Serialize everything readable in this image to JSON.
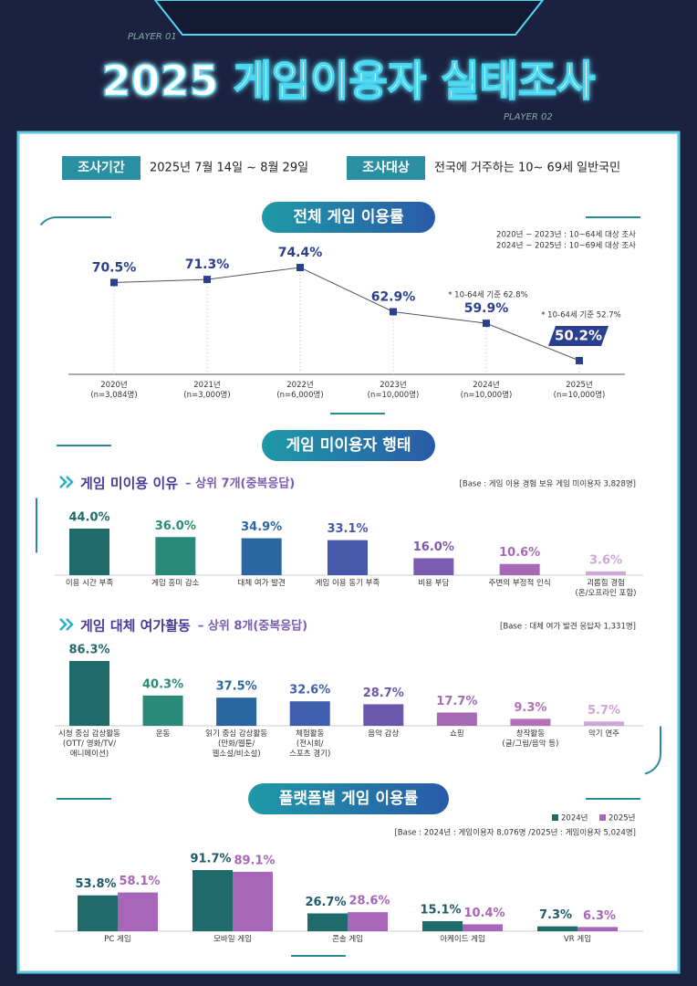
{
  "header": {
    "title": "2025 게임이용자 실태조사",
    "player_1": "PLAYER 01",
    "player_2": "PLAYER 02"
  },
  "survey": {
    "period_label": "조사기간",
    "period": "2025년 7월 14일 ~ 8월 29일",
    "target_label": "조사대상",
    "target": "전국에 거주하는 10~ 69세 일반국민"
  },
  "chart_data": [
    {
      "type": "line",
      "title": "전체 게임 이용률",
      "notes": [
        "2020년 ~ 2023년 : 10~64세 대상 조사",
        "2024년 ~ 2025년 : 10~69세 대상 조사"
      ],
      "categories": [
        "2020년\n(n=3,084명)",
        "2021년\n(n=3,000명)",
        "2022년\n(n=6,000명)",
        "2023년\n(n=10,000명)",
        "2024년\n(n=10,000명)",
        "2025년\n(n=10,000명)"
      ],
      "values": [
        70.5,
        71.3,
        74.4,
        62.9,
        59.9,
        50.2
      ],
      "value_labels": [
        "70.5%",
        "71.3%",
        "74.4%",
        "62.9%",
        "59.9%",
        "50.2%"
      ],
      "annotations": [
        "* 10-64세 기준 62.8%",
        "* 10-64세 기준 52.7%"
      ],
      "color": "#2b3f8f",
      "highlight_last": true
    },
    {
      "type": "bar",
      "section_title": "게임 미이용자 행태",
      "title": "게임 미이용 이유",
      "subtitle": "– 상위 7개(중복응답)",
      "base_note": "[Base : 게임 이용 경험 보유 게임 미이용자 3,828명]",
      "categories": [
        "이용 시간 부족",
        "게임 흥미 감소",
        "대체 여가 발견",
        "게임 이용 동기 부족",
        "비용 부담",
        "주변의 부정적 인식",
        "괴롭힘 경험\n(온/오프라인 포함)"
      ],
      "values": [
        44.0,
        36.0,
        34.9,
        33.1,
        16.0,
        10.6,
        3.6
      ],
      "value_labels": [
        "44.0%",
        "36.0%",
        "34.9%",
        "33.1%",
        "16.0%",
        "10.6%",
        "3.6%"
      ],
      "colors": [
        "#1f6b6b",
        "#2a8a7a",
        "#2a67a0",
        "#4659aa",
        "#7a5bb0",
        "#a66ab4",
        "#cfa6d8"
      ]
    },
    {
      "type": "bar",
      "title": "게임 대체 여가활동",
      "subtitle": "– 상위 8개(중복응답)",
      "base_note": "[Base : 대체 여가 발견 응답자 1,331명]",
      "categories": [
        "시청 중심 감상활동\n(OTT/ 영화/TV/\n애니메이션)",
        "운동",
        "읽기 중심 감상활동\n(만화/웹툰/\n웹소설/비소설)",
        "체험활동\n(전시회/\n스포츠 경기)",
        "음악 감상",
        "쇼핑",
        "창작활동\n(글/그림/음악 등)",
        "악기 연주"
      ],
      "values": [
        86.3,
        40.3,
        37.5,
        32.6,
        28.7,
        17.7,
        9.3,
        5.7
      ],
      "value_labels": [
        "86.3%",
        "40.3%",
        "37.5%",
        "32.6%",
        "28.7%",
        "17.7%",
        "9.3%",
        "5.7%"
      ],
      "colors": [
        "#1f6b6b",
        "#2a8a7a",
        "#2a67a0",
        "#3f5fae",
        "#6a58ae",
        "#a66ab4",
        "#b470b8",
        "#cfa6d8"
      ]
    },
    {
      "type": "grouped_bar",
      "title": "플랫폼별 게임 이용률",
      "base_note": "[Base : 2024년 : 게임이용자 8,076명 /2025년 : 게임이용자 5,024명]",
      "categories": [
        "PC 게임",
        "모바일 게임",
        "콘솔 게임",
        "아케이드 게임",
        "VR 게임"
      ],
      "series": [
        {
          "name": "2024년",
          "color": "#1f6b6b",
          "values": [
            53.8,
            91.7,
            26.7,
            15.1,
            7.3
          ],
          "value_labels": [
            "53.8%",
            "91.7%",
            "26.7%",
            "15.1%",
            "7.3%"
          ]
        },
        {
          "name": "2025년",
          "color": "#a866b8",
          "values": [
            58.1,
            89.1,
            28.6,
            10.4,
            6.3
          ],
          "value_labels": [
            "58.1%",
            "89.1%",
            "28.6%",
            "10.4%",
            "6.3%"
          ]
        }
      ]
    }
  ]
}
